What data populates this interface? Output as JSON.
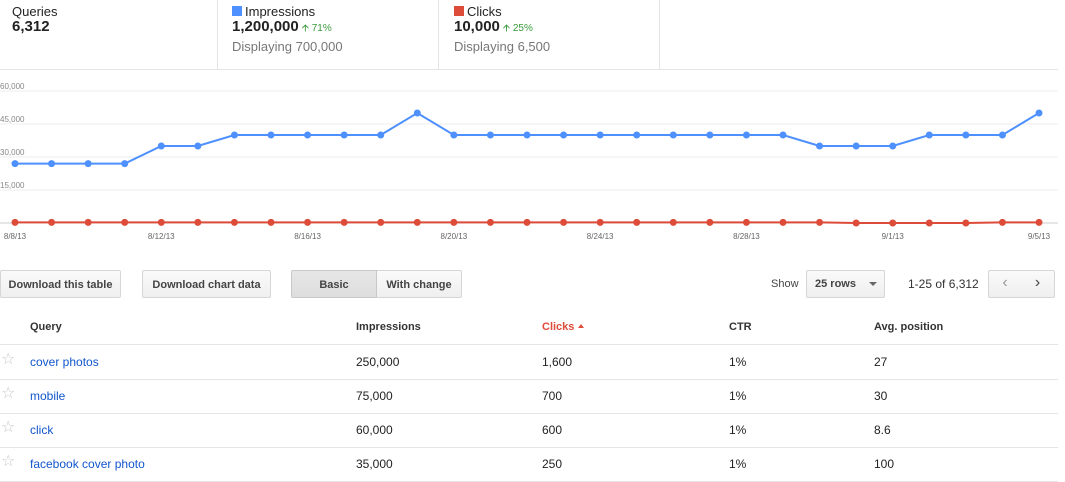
{
  "stats": {
    "queries": {
      "label": "Queries",
      "value": "6,312"
    },
    "impressions": {
      "label": "Impressions",
      "value": "1,200,000",
      "change": "71%",
      "sub": "Displaying 700,000",
      "color": "#4d90fe"
    },
    "clicks": {
      "label": "Clicks",
      "value": "10,000",
      "change": "25%",
      "sub": "Displaying 6,500",
      "color": "#dd4b39"
    }
  },
  "chart_data": {
    "type": "line",
    "x": [
      "8/8/13",
      "8/9/13",
      "8/10/13",
      "8/11/13",
      "8/12/13",
      "8/13/13",
      "8/14/13",
      "8/15/13",
      "8/16/13",
      "8/17/13",
      "8/18/13",
      "8/19/13",
      "8/20/13",
      "8/21/13",
      "8/22/13",
      "8/23/13",
      "8/24/13",
      "8/25/13",
      "8/26/13",
      "8/27/13",
      "8/28/13",
      "8/29/13",
      "8/30/13",
      "8/31/13",
      "9/1/13",
      "9/2/13",
      "9/3/13",
      "9/4/13",
      "9/5/13"
    ],
    "tick_labels": [
      "8/8/13",
      "8/12/13",
      "8/16/13",
      "8/20/13",
      "8/24/13",
      "8/28/13",
      "9/1/13",
      "9/5/13"
    ],
    "y_ticks": [
      "60,000",
      "45,000",
      "30,000",
      "15,000"
    ],
    "ylim": [
      0,
      60000
    ],
    "grid": true,
    "series": [
      {
        "name": "Impressions",
        "color": "#4d90fe",
        "values": [
          27000,
          27000,
          27000,
          27000,
          35000,
          35000,
          40000,
          40000,
          40000,
          40000,
          40000,
          50000,
          40000,
          40000,
          40000,
          40000,
          40000,
          40000,
          40000,
          40000,
          40000,
          40000,
          35000,
          35000,
          35000,
          40000,
          40000,
          40000,
          50000
        ]
      },
      {
        "name": "Clicks",
        "color": "#dd4b39",
        "values": [
          300,
          300,
          300,
          300,
          300,
          300,
          300,
          300,
          300,
          300,
          300,
          300,
          300,
          300,
          300,
          300,
          300,
          300,
          300,
          300,
          300,
          300,
          300,
          0,
          0,
          0,
          0,
          300,
          300
        ]
      }
    ]
  },
  "controls": {
    "download_table": "Download this table",
    "download_chart": "Download chart data",
    "basic": "Basic",
    "with_change": "With change",
    "show_label": "Show",
    "rows_value": "25 rows",
    "pager": "1-25 of 6,312",
    "prev_icon": "chevron-left-icon",
    "next_icon": "chevron-right-icon"
  },
  "table": {
    "headers": {
      "query": "Query",
      "impressions": "Impressions",
      "clicks": "Clicks",
      "ctr": "CTR",
      "avg_position": "Avg. position"
    },
    "rows": [
      {
        "query": "cover photos",
        "impressions": "250,000",
        "clicks": "1,600",
        "ctr": "1%",
        "avg_position": "27"
      },
      {
        "query": "mobile",
        "impressions": "75,000",
        "clicks": "700",
        "ctr": "1%",
        "avg_position": "30"
      },
      {
        "query": "click",
        "impressions": "60,000",
        "clicks": "600",
        "ctr": "1%",
        "avg_position": "8.6"
      },
      {
        "query": "facebook cover photo",
        "impressions": "35,000",
        "clicks": "250",
        "ctr": "1%",
        "avg_position": "100"
      }
    ]
  }
}
